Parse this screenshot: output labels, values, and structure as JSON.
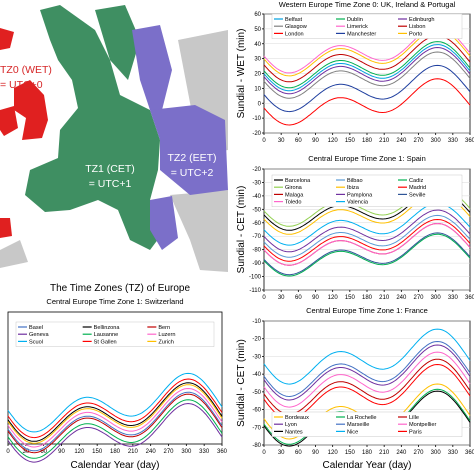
{
  "map": {
    "caption": "The Time Zones (TZ) of Europe",
    "zones": [
      {
        "line1": "TZ0 (WET)",
        "line2": "= UTC+0",
        "color": "#d62728"
      },
      {
        "line1": "TZ1 (CET)",
        "line2": "= UTC+1",
        "color": "#ffffff"
      },
      {
        "line1": "TZ2 (EET)",
        "line2": "= UTC+2",
        "color": "#ffffff"
      }
    ],
    "colors": {
      "wet": "#e02020",
      "cet": "#3f8f62",
      "eet": "#7b6fc9",
      "other": "#c8c8c8",
      "sea": "#ffffff"
    }
  },
  "chart_data": [
    {
      "type": "line",
      "title": "Western Europe Time Zone 0: UK, Ireland & Portugal",
      "ylabel": "Sundial - WET (min)",
      "xlabel": "",
      "xlim": [
        0,
        360
      ],
      "ylim": [
        -20,
        60
      ],
      "xticks": [
        0,
        30,
        60,
        90,
        120,
        150,
        180,
        210,
        240,
        270,
        300,
        330,
        360
      ],
      "yticks": [
        -20,
        -10,
        0,
        10,
        20,
        30,
        40,
        50,
        60
      ],
      "series": [
        {
          "name": "Belfast",
          "offset": 23,
          "color": "#00a0e0"
        },
        {
          "name": "Dublin",
          "offset": 25,
          "color": "#00b050"
        },
        {
          "name": "Edinburgh",
          "offset": 21,
          "color": "#7030a0"
        },
        {
          "name": "Glasgow",
          "offset": 18,
          "color": "#808080"
        },
        {
          "name": "Limerick",
          "offset": 35,
          "color": "#ff66cc"
        },
        {
          "name": "Lisbon",
          "offset": 29,
          "color": "#c00000"
        },
        {
          "name": "London",
          "offset": 0,
          "color": "#ff0000"
        },
        {
          "name": "Manchester",
          "offset": 9,
          "color": "#1f3f9f"
        },
        {
          "name": "Porto",
          "offset": 33,
          "color": "#ffc000"
        }
      ]
    },
    {
      "type": "line",
      "title": "Central Europe Time Zone 1: Spain",
      "ylabel": "Sundial - CET (min)",
      "xlabel": "",
      "xlim": [
        0,
        360
      ],
      "ylim": [
        -110,
        -20
      ],
      "xticks": [
        0,
        30,
        60,
        90,
        120,
        150,
        180,
        210,
        240,
        270,
        300,
        330,
        360
      ],
      "yticks": [
        -110,
        -100,
        -90,
        -80,
        -70,
        -60,
        -50,
        -40,
        -30,
        -20
      ],
      "series": [
        {
          "name": "Barcelona",
          "offset": -51,
          "color": "#000000"
        },
        {
          "name": "Bilbao",
          "offset": -71,
          "color": "#5b9bd5"
        },
        {
          "name": "Cadiz",
          "offset": -85,
          "color": "#00b050"
        },
        {
          "name": "Girona",
          "offset": -48,
          "color": "#92d050"
        },
        {
          "name": "Ibiza",
          "offset": -54,
          "color": "#ffc000"
        },
        {
          "name": "Madrid",
          "offset": -74,
          "color": "#ff0000"
        },
        {
          "name": "Malaga",
          "offset": -77,
          "color": "#c00000"
        },
        {
          "name": "Pamplona",
          "offset": -67,
          "color": "#7030a0"
        },
        {
          "name": "Seville",
          "offset": -84,
          "color": "#2f5597"
        },
        {
          "name": "Toledo",
          "offset": -77,
          "color": "#ff66cc"
        },
        {
          "name": "Valencia",
          "offset": -62,
          "color": "#00b0f0"
        }
      ]
    },
    {
      "type": "line",
      "title": "Central Europe Time Zone 1: Switzerland",
      "ylabel": "",
      "xlabel": "Calendar Year (day)",
      "xlim": [
        0,
        360
      ],
      "ylim": [
        -40,
        30
      ],
      "xticks": [
        0,
        30,
        60,
        90,
        120,
        150,
        180,
        210,
        240,
        270,
        300,
        330,
        360
      ],
      "yticks": [],
      "series": [
        {
          "name": "Basel",
          "offset": -29,
          "color": "#4472c4"
        },
        {
          "name": "Bellinzona",
          "offset": -24,
          "color": "#000000"
        },
        {
          "name": "Bern",
          "offset": -30,
          "color": "#c00000"
        },
        {
          "name": "Geneva",
          "offset": -35,
          "color": "#7030a0"
        },
        {
          "name": "Lausanne",
          "offset": -33,
          "color": "#00b050"
        },
        {
          "name": "Luzern",
          "offset": -27,
          "color": "#ff66cc"
        },
        {
          "name": "Scuol",
          "offset": -19,
          "color": "#00b0f0"
        },
        {
          "name": "St Gallen",
          "offset": -22,
          "color": "#ff0000"
        },
        {
          "name": "Zurich",
          "offset": -25,
          "color": "#ffc000"
        }
      ]
    },
    {
      "type": "line",
      "title": "Central Europe Time Zone 1: France",
      "ylabel": "Sundial - CET (min)",
      "xlabel": "Calendar Year (day)",
      "xlim": [
        0,
        360
      ],
      "ylim": [
        -80,
        -10
      ],
      "xticks": [
        0,
        30,
        60,
        90,
        120,
        150,
        180,
        210,
        240,
        270,
        300,
        330,
        360
      ],
      "yticks": [
        -80,
        -70,
        -60,
        -50,
        -40,
        -30,
        -20,
        -10
      ],
      "series": [
        {
          "name": "Bordeaux",
          "offset": -62,
          "color": "#ffc000"
        },
        {
          "name": "La Rochelle",
          "offset": -65,
          "color": "#00b050"
        },
        {
          "name": "Lille",
          "offset": -48,
          "color": "#c00000"
        },
        {
          "name": "Lyon",
          "offset": -40,
          "color": "#7030a0"
        },
        {
          "name": "Marseille",
          "offset": -38,
          "color": "#4472c4"
        },
        {
          "name": "Montpellier",
          "offset": -44,
          "color": "#ff66cc"
        },
        {
          "name": "Nantes",
          "offset": -66,
          "color": "#000000"
        },
        {
          "name": "Nice",
          "offset": -31,
          "color": "#00b0f0"
        },
        {
          "name": "Paris",
          "offset": -51,
          "color": "#ff0000"
        }
      ]
    }
  ]
}
